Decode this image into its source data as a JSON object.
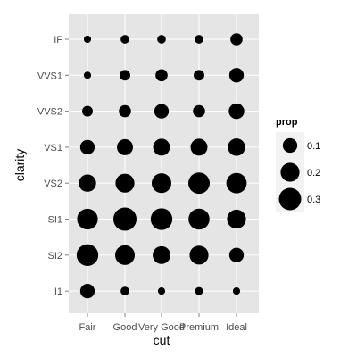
{
  "chart_data": {
    "type": "scatter",
    "title": "",
    "xlabel": "cut",
    "ylabel": "clarity",
    "x_categories": [
      "Fair",
      "Good",
      "Very Good",
      "Premium",
      "Ideal"
    ],
    "y_categories": [
      "I1",
      "SI2",
      "SI1",
      "VS2",
      "VS1",
      "VVS2",
      "VVS1",
      "IF"
    ],
    "size_variable": "prop",
    "grid": true,
    "legend": {
      "title": "prop",
      "placement": "right",
      "entries": [
        {
          "label": "0.1",
          "value": 0.1
        },
        {
          "label": "0.2",
          "value": 0.2
        },
        {
          "label": "0.3",
          "value": 0.3
        }
      ]
    },
    "points": [
      {
        "x": "Fair",
        "y": "I1",
        "prop": 0.1
      },
      {
        "x": "Fair",
        "y": "SI2",
        "prop": 0.28
      },
      {
        "x": "Fair",
        "y": "SI1",
        "prop": 0.25
      },
      {
        "x": "Fair",
        "y": "VS2",
        "prop": 0.16
      },
      {
        "x": "Fair",
        "y": "VS1",
        "prop": 0.1
      },
      {
        "x": "Fair",
        "y": "VVS2",
        "prop": 0.04
      },
      {
        "x": "Fair",
        "y": "VVS1",
        "prop": 0.01
      },
      {
        "x": "Fair",
        "y": "IF",
        "prop": 0.01
      },
      {
        "x": "Good",
        "y": "I1",
        "prop": 0.02
      },
      {
        "x": "Good",
        "y": "SI2",
        "prop": 0.22
      },
      {
        "x": "Good",
        "y": "SI1",
        "prop": 0.33
      },
      {
        "x": "Good",
        "y": "VS2",
        "prop": 0.2
      },
      {
        "x": "Good",
        "y": "VS1",
        "prop": 0.13
      },
      {
        "x": "Good",
        "y": "VVS2",
        "prop": 0.06
      },
      {
        "x": "Good",
        "y": "VVS1",
        "prop": 0.04
      },
      {
        "x": "Good",
        "y": "IF",
        "prop": 0.02
      },
      {
        "x": "Very Good",
        "y": "I1",
        "prop": 0.01
      },
      {
        "x": "Very Good",
        "y": "SI2",
        "prop": 0.17
      },
      {
        "x": "Very Good",
        "y": "SI1",
        "prop": 0.28
      },
      {
        "x": "Very Good",
        "y": "VS2",
        "prop": 0.22
      },
      {
        "x": "Very Good",
        "y": "VS1",
        "prop": 0.15
      },
      {
        "x": "Very Good",
        "y": "VVS2",
        "prop": 0.1
      },
      {
        "x": "Very Good",
        "y": "VVS1",
        "prop": 0.06
      },
      {
        "x": "Very Good",
        "y": "IF",
        "prop": 0.02
      },
      {
        "x": "Premium",
        "y": "I1",
        "prop": 0.015
      },
      {
        "x": "Premium",
        "y": "SI2",
        "prop": 0.2
      },
      {
        "x": "Premium",
        "y": "SI1",
        "prop": 0.26
      },
      {
        "x": "Premium",
        "y": "VS2",
        "prop": 0.27
      },
      {
        "x": "Premium",
        "y": "VS1",
        "prop": 0.15
      },
      {
        "x": "Premium",
        "y": "VVS2",
        "prop": 0.06
      },
      {
        "x": "Premium",
        "y": "VVS1",
        "prop": 0.04
      },
      {
        "x": "Premium",
        "y": "IF",
        "prop": 0.02
      },
      {
        "x": "Ideal",
        "y": "I1",
        "prop": 0.01
      },
      {
        "x": "Ideal",
        "y": "SI2",
        "prop": 0.1
      },
      {
        "x": "Ideal",
        "y": "SI1",
        "prop": 0.2
      },
      {
        "x": "Ideal",
        "y": "VS2",
        "prop": 0.24
      },
      {
        "x": "Ideal",
        "y": "VS1",
        "prop": 0.16
      },
      {
        "x": "Ideal",
        "y": "VVS2",
        "prop": 0.12
      },
      {
        "x": "Ideal",
        "y": "VVS1",
        "prop": 0.1
      },
      {
        "x": "Ideal",
        "y": "IF",
        "prop": 0.06
      }
    ],
    "colors": {
      "panel": "#e5e5e5",
      "grid": "#ffffff",
      "point": "#000000",
      "legend_key_bg": "#f2f2f2"
    }
  }
}
